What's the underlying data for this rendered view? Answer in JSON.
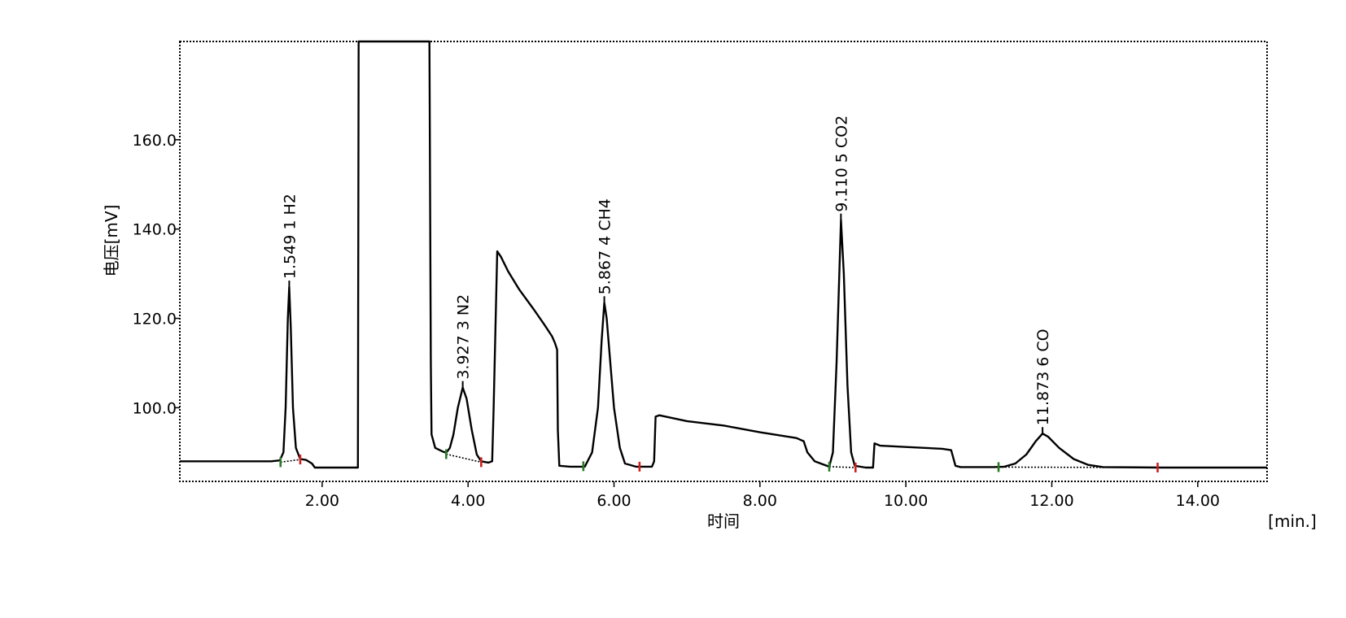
{
  "chart_data": {
    "type": "line",
    "xlabel": "时间",
    "x_unit": "[min.]",
    "ylabel": "电压[mV]",
    "xlim": [
      0.05,
      14.95
    ],
    "ylim": [
      83.5,
      182
    ],
    "grid": false,
    "x_ticks": [
      {
        "value": 2.0,
        "label": "2.00"
      },
      {
        "value": 4.0,
        "label": "4.00"
      },
      {
        "value": 6.0,
        "label": "6.00"
      },
      {
        "value": 8.0,
        "label": "8.00"
      },
      {
        "value": 10.0,
        "label": "10.00"
      },
      {
        "value": 12.0,
        "label": "12.00"
      },
      {
        "value": 14.0,
        "label": "14.00"
      }
    ],
    "y_ticks": [
      {
        "value": 100,
        "label": "100.0"
      },
      {
        "value": 120,
        "label": "120.0"
      },
      {
        "value": 140,
        "label": "140.0"
      },
      {
        "value": 160,
        "label": "160.0"
      }
    ],
    "series": [
      {
        "line_color": "#000000",
        "points": [
          [
            0.05,
            88.0
          ],
          [
            1.3,
            88.0
          ],
          [
            1.42,
            88.2
          ],
          [
            1.47,
            90
          ],
          [
            1.5,
            100
          ],
          [
            1.53,
            120
          ],
          [
            1.549,
            127
          ],
          [
            1.57,
            118
          ],
          [
            1.6,
            100
          ],
          [
            1.64,
            91
          ],
          [
            1.7,
            88.5
          ],
          [
            1.78,
            88.3
          ],
          [
            1.86,
            87.5
          ],
          [
            1.9,
            86.6
          ],
          [
            2.2,
            86.6
          ],
          [
            2.49,
            86.6
          ],
          [
            2.5,
            182
          ],
          [
            3.47,
            182
          ],
          [
            3.49,
            110
          ],
          [
            3.5,
            94
          ],
          [
            3.55,
            91
          ],
          [
            3.65,
            90.2
          ],
          [
            3.7,
            89.9
          ],
          [
            3.75,
            91
          ],
          [
            3.8,
            94
          ],
          [
            3.86,
            100
          ],
          [
            3.927,
            104.5
          ],
          [
            3.98,
            102
          ],
          [
            4.05,
            95
          ],
          [
            4.12,
            89.5
          ],
          [
            4.18,
            88
          ],
          [
            4.28,
            87.7
          ],
          [
            4.33,
            88
          ],
          [
            4.35,
            100
          ],
          [
            4.4,
            135
          ],
          [
            4.45,
            133.8
          ],
          [
            4.55,
            130.5
          ],
          [
            4.7,
            126.5
          ],
          [
            4.9,
            122
          ],
          [
            5.05,
            118.5
          ],
          [
            5.15,
            116
          ],
          [
            5.19,
            114.5
          ],
          [
            5.22,
            113
          ],
          [
            5.23,
            95
          ],
          [
            5.25,
            87
          ],
          [
            5.4,
            86.8
          ],
          [
            5.6,
            86.8
          ],
          [
            5.7,
            90
          ],
          [
            5.78,
            100
          ],
          [
            5.83,
            115
          ],
          [
            5.867,
            123.5
          ],
          [
            5.9,
            120
          ],
          [
            5.95,
            110
          ],
          [
            6.0,
            100
          ],
          [
            6.08,
            91
          ],
          [
            6.15,
            87.5
          ],
          [
            6.3,
            86.8
          ],
          [
            6.52,
            86.8
          ],
          [
            6.55,
            88
          ],
          [
            6.57,
            98
          ],
          [
            6.62,
            98.3
          ],
          [
            7.0,
            97
          ],
          [
            7.5,
            96
          ],
          [
            8.0,
            94.5
          ],
          [
            8.5,
            93.2
          ],
          [
            8.6,
            92.5
          ],
          [
            8.65,
            90
          ],
          [
            8.75,
            88
          ],
          [
            8.95,
            86.8
          ],
          [
            9.0,
            90
          ],
          [
            9.05,
            110
          ],
          [
            9.11,
            142
          ],
          [
            9.15,
            130
          ],
          [
            9.2,
            105
          ],
          [
            9.25,
            90
          ],
          [
            9.3,
            87
          ],
          [
            9.45,
            86.6
          ],
          [
            9.55,
            86.6
          ],
          [
            9.57,
            92
          ],
          [
            9.65,
            91.5
          ],
          [
            10.0,
            91.2
          ],
          [
            10.5,
            90.8
          ],
          [
            10.62,
            90.5
          ],
          [
            10.68,
            87
          ],
          [
            10.75,
            86.7
          ],
          [
            11.2,
            86.7
          ],
          [
            11.35,
            86.8
          ],
          [
            11.5,
            87.5
          ],
          [
            11.65,
            89.5
          ],
          [
            11.78,
            92.5
          ],
          [
            11.873,
            94.2
          ],
          [
            11.95,
            93.5
          ],
          [
            12.1,
            91
          ],
          [
            12.3,
            88.5
          ],
          [
            12.5,
            87.2
          ],
          [
            12.7,
            86.7
          ],
          [
            13.5,
            86.6
          ],
          [
            14.95,
            86.6
          ]
        ]
      }
    ],
    "baselines": [
      [
        [
          1.43,
          87.8
        ],
        [
          1.7,
          88.4
        ]
      ],
      [
        [
          3.7,
          89.6
        ],
        [
          4.18,
          87.8
        ]
      ],
      [
        [
          8.95,
          86.8
        ],
        [
          9.31,
          86.6
        ]
      ],
      [
        [
          11.27,
          86.7
        ],
        [
          13.45,
          86.6
        ]
      ]
    ],
    "integration_markers": [
      {
        "x": 1.43,
        "y": 87.8,
        "kind": "start",
        "color": "#2a7a2a"
      },
      {
        "x": 1.7,
        "y": 88.4,
        "kind": "end",
        "color": "#d02020"
      },
      {
        "x": 3.7,
        "y": 89.6,
        "kind": "start",
        "color": "#2a7a2a"
      },
      {
        "x": 4.18,
        "y": 87.8,
        "kind": "end",
        "color": "#d02020"
      },
      {
        "x": 5.58,
        "y": 86.9,
        "kind": "start",
        "color": "#2a7a2a"
      },
      {
        "x": 6.35,
        "y": 86.8,
        "kind": "end",
        "color": "#d02020"
      },
      {
        "x": 8.95,
        "y": 86.8,
        "kind": "start",
        "color": "#2a7a2a"
      },
      {
        "x": 9.31,
        "y": 86.6,
        "kind": "end",
        "color": "#d02020"
      },
      {
        "x": 11.27,
        "y": 86.7,
        "kind": "start",
        "color": "#2a7a2a"
      },
      {
        "x": 13.45,
        "y": 86.6,
        "kind": "end",
        "color": "#d02020"
      }
    ],
    "annotations": [
      {
        "x": 1.549,
        "y": 127,
        "text": "1.549  1  H2"
      },
      {
        "x": 3.927,
        "y": 104.5,
        "text": "3.927  3  N2"
      },
      {
        "x": 5.867,
        "y": 123.5,
        "text": "5.867  4  CH4"
      },
      {
        "x": 9.11,
        "y": 142,
        "text": "9.110  5  CO2"
      },
      {
        "x": 11.873,
        "y": 94.2,
        "text": "11.873  6  CO"
      }
    ]
  }
}
